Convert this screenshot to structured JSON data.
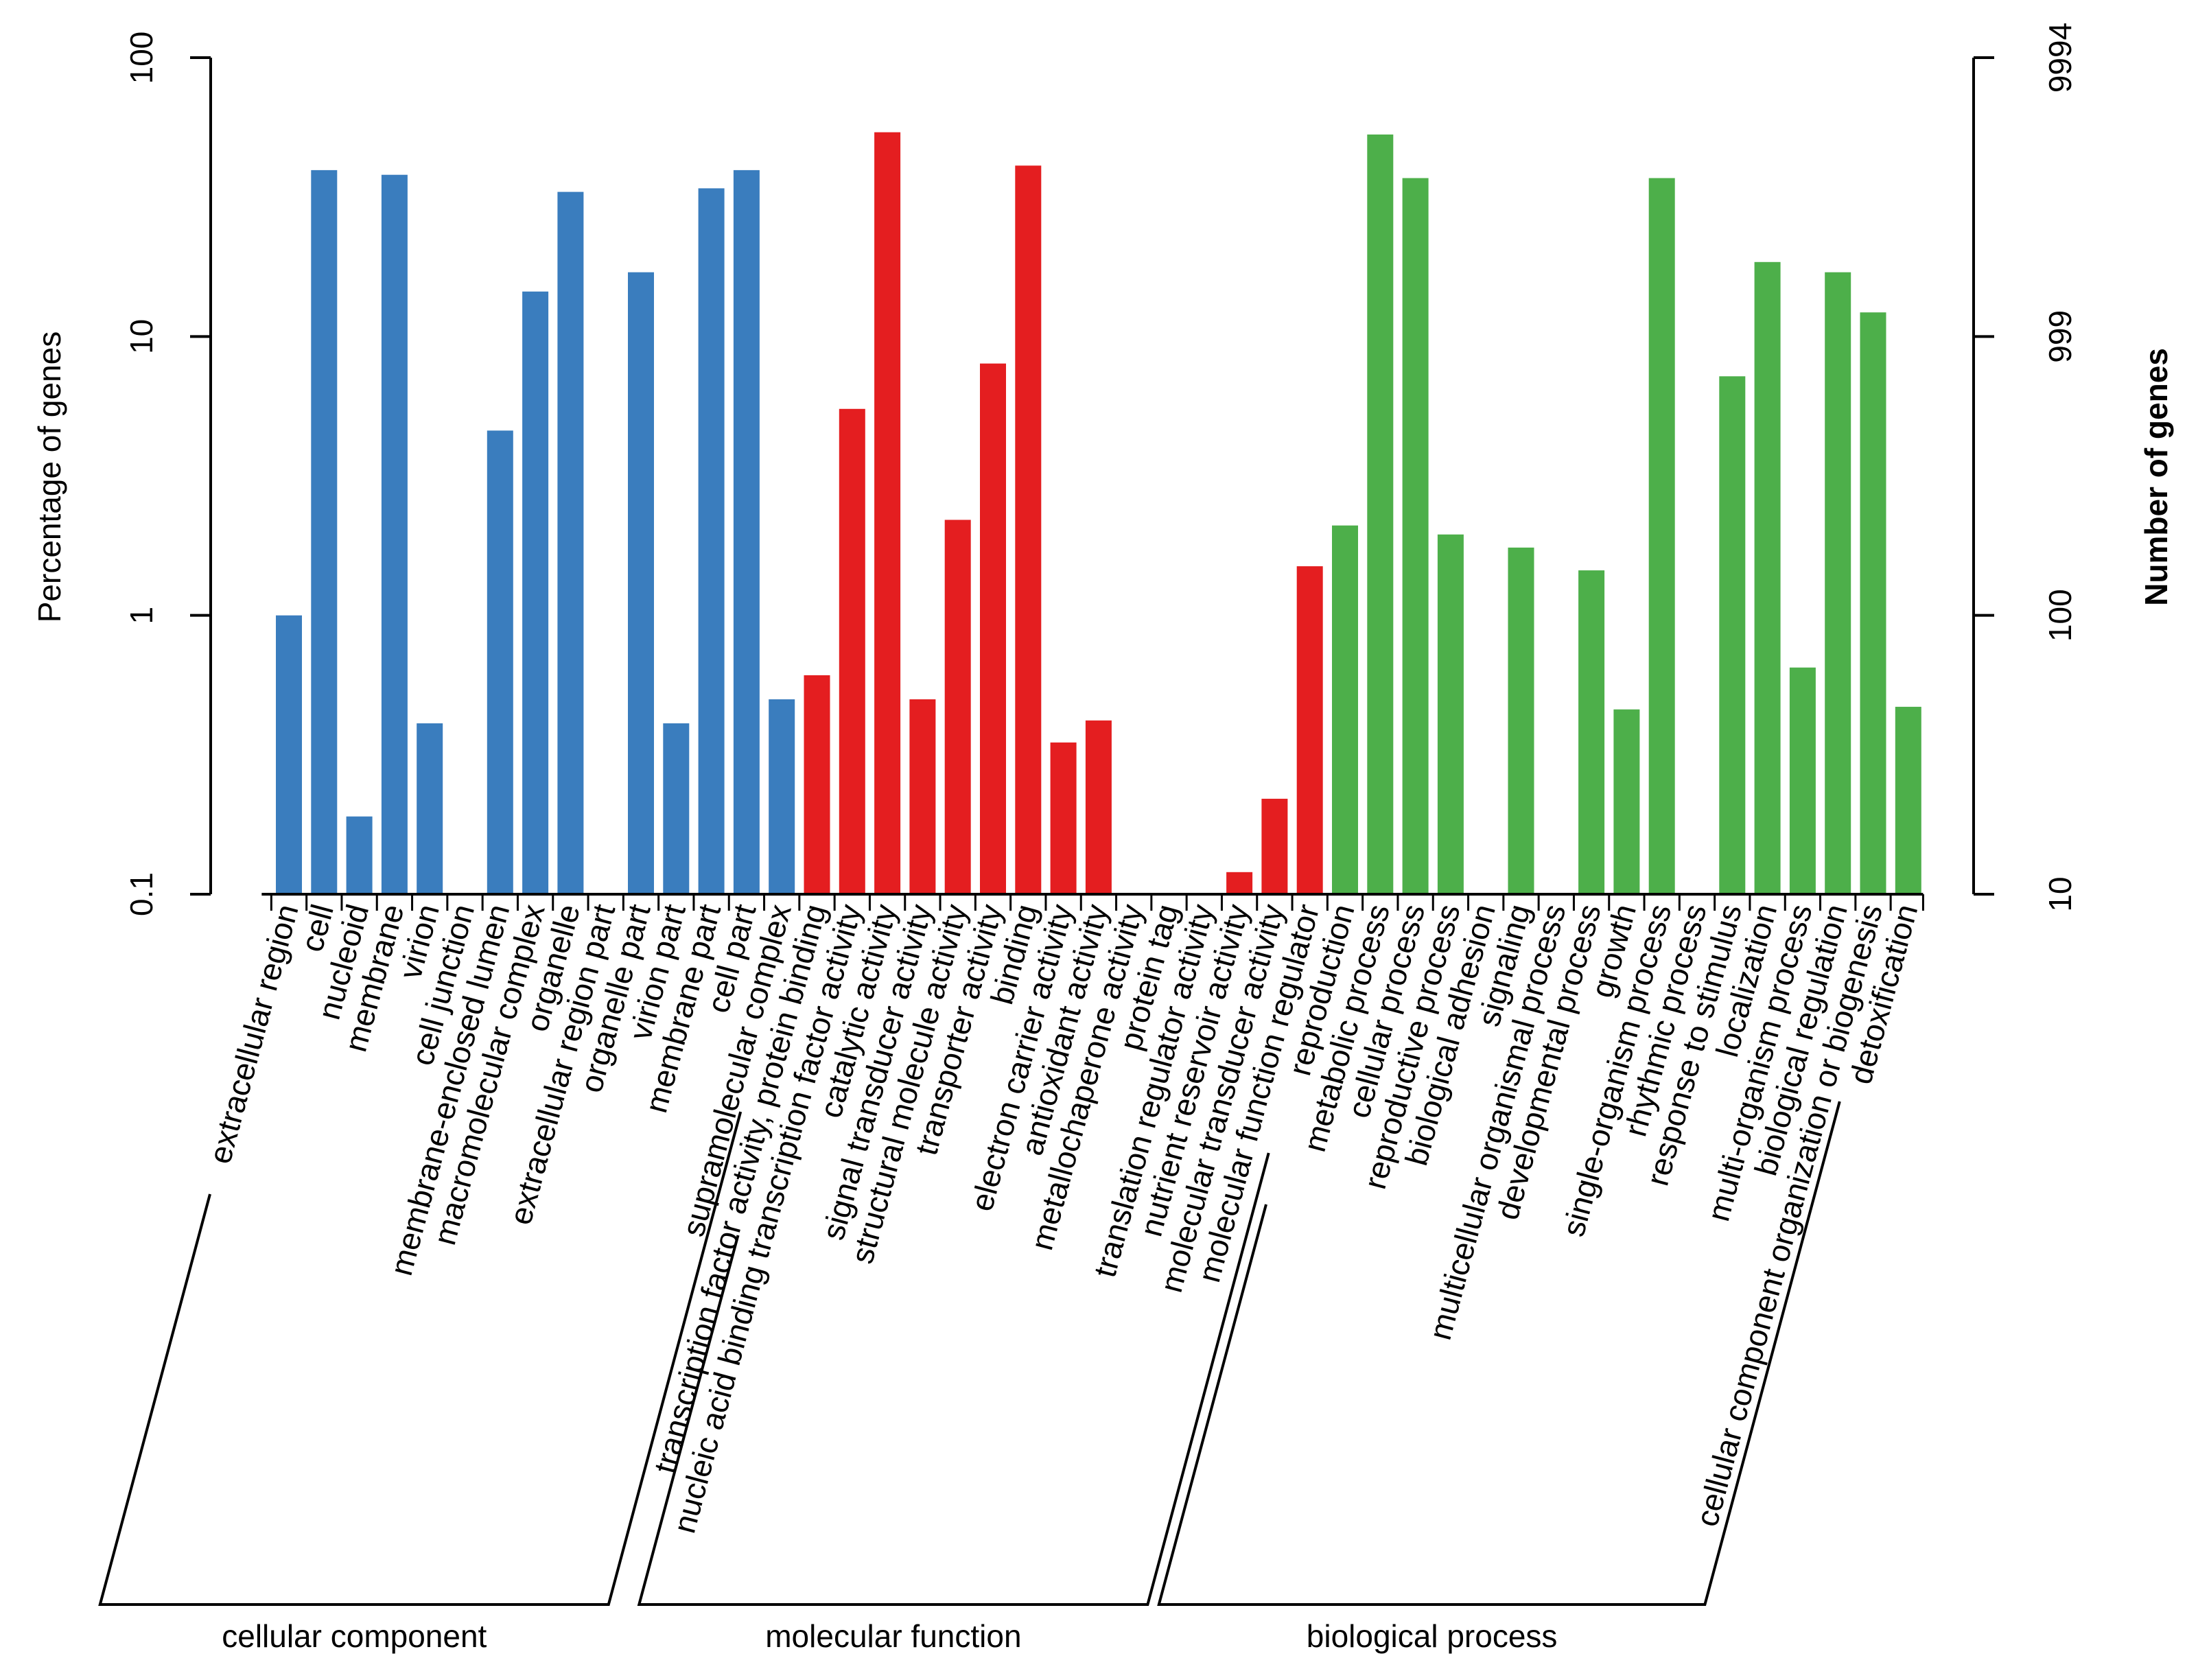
{
  "chart_data": {
    "type": "bar",
    "y_scale": "log",
    "ylim": [
      0.1,
      100
    ],
    "ylabel": "Percentage of genes",
    "left_ticks": [
      "0.1",
      "1",
      "10",
      "100"
    ],
    "y2label": "Number of genes",
    "right_ticks": [
      "10",
      "100",
      "999",
      "9994"
    ],
    "grid": false,
    "legend": "none",
    "groups": [
      {
        "name": "cellular component",
        "color": "#3A7DBE",
        "categories": [
          "extracellular region",
          "cell",
          "nucleoid",
          "membrane",
          "virion",
          "cell junction",
          "membrane-enclosed lumen",
          "macromolecular complex",
          "organelle",
          "extracellular region part",
          "organelle part",
          "virion part",
          "membrane part",
          "cell part",
          "supramolecular complex"
        ],
        "values": [
          1.0,
          39.5,
          0.19,
          38.0,
          0.41,
          null,
          4.6,
          14.5,
          33.0,
          null,
          17.0,
          0.41,
          34.0,
          39.5,
          0.5
        ]
      },
      {
        "name": "molecular function",
        "color": "#E41E20",
        "categories": [
          "transcription factor activity, protein binding",
          "nucleic acid binding transcription factor activity",
          "catalytic activity",
          "signal transducer activity",
          "structural molecule activity",
          "transporter activity",
          "binding",
          "electron carrier activity",
          "antioxidant activity",
          "metallochaperone activity",
          "protein tag",
          "translation regulator activity",
          "nutrient reservoir activity",
          "molecular transducer activity",
          "molecular function regulator"
        ],
        "values": [
          0.61,
          5.5,
          54.0,
          0.5,
          2.2,
          8.0,
          41.0,
          0.35,
          0.42,
          null,
          null,
          null,
          0.12,
          0.22,
          1.5
        ]
      },
      {
        "name": "biological process",
        "color": "#4DAF4A",
        "categories": [
          "reproduction",
          "metabolic process",
          "cellular process",
          "reproductive process",
          "biological adhesion",
          "signaling",
          "multicellular organismal process",
          "developmental process",
          "growth",
          "single-organism process",
          "rhythmic process",
          "response to stimulus",
          "localization",
          "multi-organism process",
          "biological regulation",
          "cellular component organization or biogenesis",
          "detoxification"
        ],
        "values": [
          2.1,
          53.0,
          37.0,
          1.95,
          null,
          1.75,
          null,
          1.45,
          0.46,
          37.0,
          null,
          7.2,
          18.5,
          0.65,
          17.0,
          12.2,
          0.47
        ]
      }
    ]
  }
}
